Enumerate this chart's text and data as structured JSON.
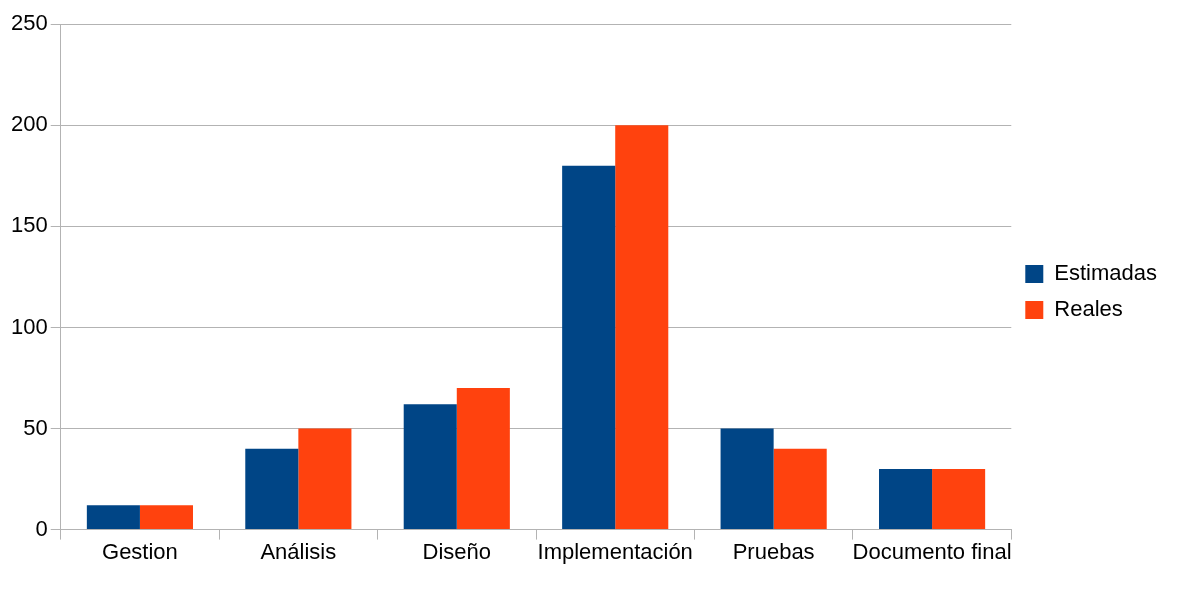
{
  "chart_data": {
    "type": "bar",
    "categories": [
      "Gestion",
      "Análisis",
      "Diseño",
      "Implementación",
      "Pruebas",
      "Documento final"
    ],
    "series": [
      {
        "name": "Estimadas",
        "color": "#004586",
        "values": [
          12,
          40,
          62,
          180,
          50,
          30
        ]
      },
      {
        "name": "Reales",
        "color": "#ff420e",
        "values": [
          12,
          50,
          70,
          200,
          40,
          30
        ]
      }
    ],
    "ylim": [
      0,
      250
    ],
    "yticks": [
      0,
      50,
      100,
      150,
      200,
      250
    ],
    "grid": "y",
    "legend": "right"
  }
}
